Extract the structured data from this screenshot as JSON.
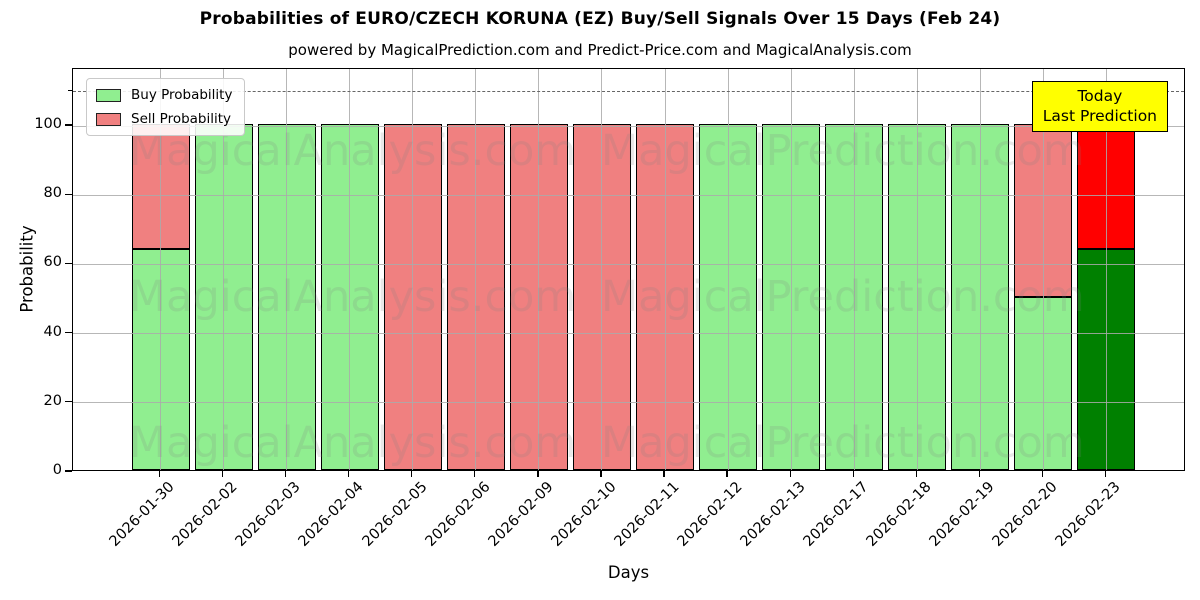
{
  "chart_data": {
    "type": "bar",
    "stacked": true,
    "title": "Probabilities of EURO/CZECH KORUNA (EZ) Buy/Sell Signals Over 15 Days (Feb 24)",
    "subtitle": "powered by MagicalPrediction.com and Predict-Price.com and MagicalAnalysis.com",
    "xlabel": "Days",
    "ylabel": "Probability",
    "categories": [
      "2026-01-30",
      "2026-02-02",
      "2026-02-03",
      "2026-02-04",
      "2026-02-05",
      "2026-02-06",
      "2026-02-09",
      "2026-02-10",
      "2026-02-11",
      "2026-02-12",
      "2026-02-13",
      "2026-02-17",
      "2026-02-18",
      "2026-02-19",
      "2026-02-20",
      "2026-02-23"
    ],
    "series": [
      {
        "name": "Buy Probability",
        "values": [
          64,
          100,
          100,
          100,
          0,
          0,
          0,
          0,
          0,
          100,
          100,
          100,
          100,
          100,
          50,
          64
        ]
      },
      {
        "name": "Sell Probability",
        "values": [
          36,
          0,
          0,
          0,
          100,
          100,
          100,
          100,
          100,
          0,
          0,
          0,
          0,
          0,
          50,
          36
        ]
      }
    ],
    "yticks": [
      0,
      20,
      40,
      60,
      80,
      100
    ],
    "ylim": [
      0,
      116.5
    ],
    "grid": true,
    "legend_position": "upper-left",
    "dashed_line_y": 110,
    "today_index": 15,
    "colors": {
      "buy": "#90EE90",
      "sell": "#F08080",
      "today_buy": "#008000",
      "today_sell": "#FF0000",
      "bar_edge": "#000000",
      "grid": "#AAAAAA",
      "dashed_line": "#666666",
      "today_box_bg": "#FFFF00"
    },
    "legend": [
      {
        "label": "Buy Probability",
        "color": "#90EE90"
      },
      {
        "label": "Sell Probability",
        "color": "#F08080"
      }
    ],
    "today_box": {
      "line1": "Today",
      "line2": "Last Prediction"
    }
  },
  "watermarks": {
    "left": "MagicalAnalysis.com",
    "right": "MagicalPrediction.com"
  }
}
